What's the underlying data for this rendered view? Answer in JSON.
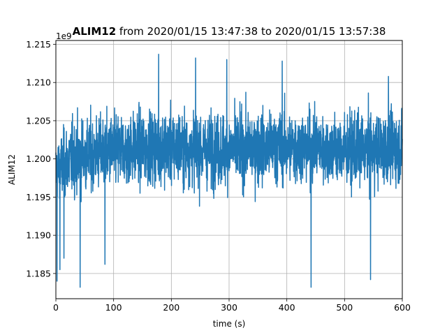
{
  "chart_data": {
    "type": "line",
    "title_bold": "ALIM12",
    "title_rest": " from 2020/01/15 13:47:38 to 2020/01/15 13:57:38",
    "xlabel": "time (s)",
    "ylabel": "ALIM12",
    "offset_text": "1e9",
    "xlim": [
      0,
      600
    ],
    "ylim": [
      1.1817,
      1.2155
    ],
    "xticks": [
      0,
      100,
      200,
      300,
      400,
      500,
      600
    ],
    "xtick_labels": [
      "0",
      "100",
      "200",
      "300",
      "400",
      "500",
      "600"
    ],
    "yticks": [
      1.185,
      1.19,
      1.195,
      1.2,
      1.205,
      1.21,
      1.215
    ],
    "ytick_labels": [
      "1.185",
      "1.190",
      "1.195",
      "1.200",
      "1.205",
      "1.210",
      "1.215"
    ],
    "grid": true,
    "series": [
      {
        "color": "#1f77b4",
        "envelope": {
          "x": [
            0,
            10,
            25,
            50,
            100,
            150,
            200,
            250,
            300,
            350,
            400,
            450,
            500,
            550,
            600
          ],
          "center": [
            1.1985,
            1.199,
            1.2,
            1.2005,
            1.201,
            1.2015,
            1.2015,
            1.2012,
            1.2012,
            1.2015,
            1.2015,
            1.2015,
            1.201,
            1.2012,
            1.2015
          ],
          "half": [
            0.0045,
            0.0055,
            0.006,
            0.006,
            0.006,
            0.006,
            0.0062,
            0.006,
            0.006,
            0.006,
            0.006,
            0.0058,
            0.0058,
            0.006,
            0.0058
          ]
        },
        "extremes": [
          {
            "x": 2,
            "y": 1.184
          },
          {
            "x": 7,
            "y": 1.1855
          },
          {
            "x": 14,
            "y": 1.187
          },
          {
            "x": 42,
            "y": 1.1832
          },
          {
            "x": 85,
            "y": 1.1862
          },
          {
            "x": 178,
            "y": 1.2137
          },
          {
            "x": 242,
            "y": 1.2132
          },
          {
            "x": 296,
            "y": 1.213
          },
          {
            "x": 392,
            "y": 1.2128
          },
          {
            "x": 442,
            "y": 1.1832
          },
          {
            "x": 545,
            "y": 1.1842
          },
          {
            "x": 576,
            "y": 1.2108
          }
        ]
      }
    ]
  }
}
